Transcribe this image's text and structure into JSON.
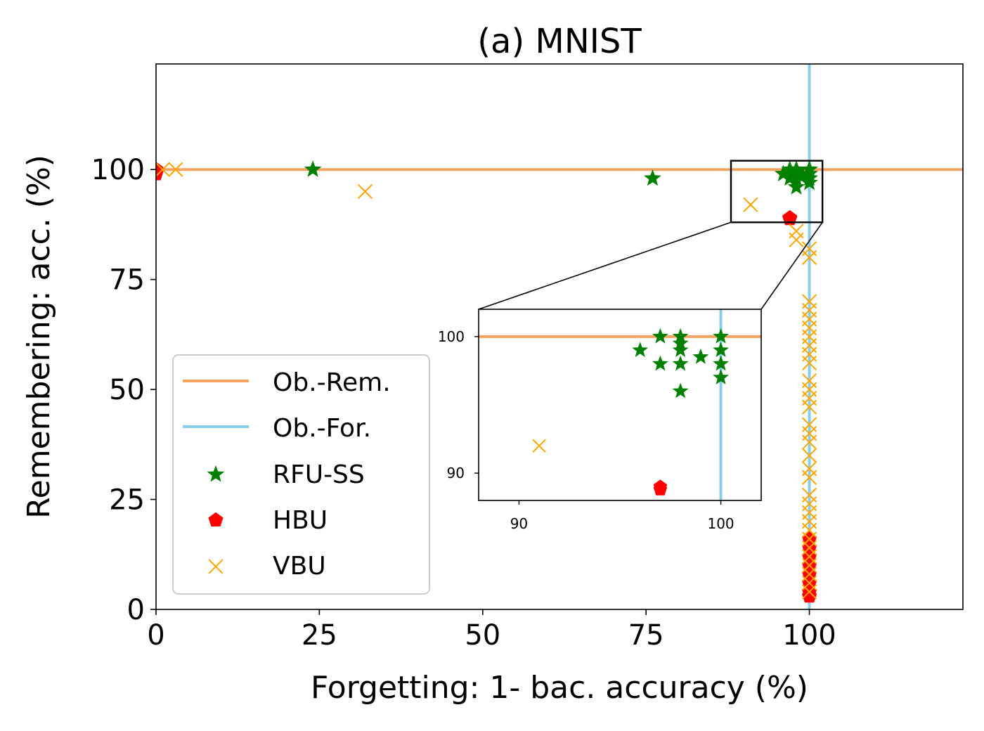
{
  "chart_data": {
    "type": "scatter",
    "title": "(a) MNIST",
    "xlabel": "Forgetting: 1- bac. accuracy (%)",
    "ylabel": "Remembering: acc. (%)",
    "xlim": [
      0,
      123.5
    ],
    "ylim": [
      0,
      124
    ],
    "xticks": [
      0,
      25,
      50,
      75,
      100
    ],
    "yticks": [
      0,
      25,
      50,
      75,
      100
    ],
    "grid": false,
    "legend_position": "lower-left",
    "reference_lines": [
      {
        "name": "Ob.-Rem.",
        "orientation": "horizontal",
        "value": 100,
        "color": "#f4a460"
      },
      {
        "name": "Ob.-For.",
        "orientation": "vertical",
        "value": 100,
        "color": "#87ceeb"
      }
    ],
    "series": [
      {
        "name": "RFU-SS",
        "marker": "star",
        "color": "#008000",
        "points": [
          [
            24,
            100
          ],
          [
            76,
            98
          ],
          [
            96,
            99
          ],
          [
            97,
            100
          ],
          [
            97,
            98
          ],
          [
            98,
            100
          ],
          [
            98,
            99.5
          ],
          [
            98,
            99
          ],
          [
            98,
            98
          ],
          [
            98,
            96
          ],
          [
            99,
            98.5
          ],
          [
            100,
            100
          ],
          [
            100,
            99
          ],
          [
            100,
            98
          ],
          [
            100,
            97
          ]
        ]
      },
      {
        "name": "HBU",
        "marker": "pentagon",
        "color": "#ff0000",
        "points": [
          [
            0,
            100
          ],
          [
            0,
            99
          ],
          [
            97,
            89
          ],
          [
            97,
            88.8
          ],
          [
            100,
            16
          ],
          [
            100,
            14
          ],
          [
            100,
            12
          ],
          [
            100,
            10
          ],
          [
            100,
            8
          ],
          [
            100,
            6
          ],
          [
            100,
            4
          ],
          [
            100,
            3
          ]
        ]
      },
      {
        "name": "VBU",
        "marker": "x",
        "color": "#ffa500",
        "points": [
          [
            1,
            100
          ],
          [
            3,
            100
          ],
          [
            32,
            95
          ],
          [
            91,
            92
          ],
          [
            98,
            86
          ],
          [
            98,
            84
          ],
          [
            100,
            82
          ],
          [
            100,
            80
          ],
          [
            100,
            70
          ],
          [
            100,
            68
          ],
          [
            100,
            66
          ],
          [
            100,
            64
          ],
          [
            100,
            62
          ],
          [
            100,
            60
          ],
          [
            100,
            58
          ],
          [
            100,
            56
          ],
          [
            100,
            52
          ],
          [
            100,
            50
          ],
          [
            100,
            48
          ],
          [
            100,
            46
          ],
          [
            100,
            42
          ],
          [
            100,
            40
          ],
          [
            100,
            38
          ],
          [
            100,
            35
          ],
          [
            100,
            32
          ],
          [
            100,
            30
          ],
          [
            100,
            26
          ],
          [
            100,
            24
          ],
          [
            100,
            22
          ],
          [
            100,
            20
          ],
          [
            100,
            18
          ],
          [
            100,
            16
          ],
          [
            100,
            14
          ],
          [
            100,
            12
          ],
          [
            100,
            10
          ],
          [
            100,
            8
          ],
          [
            100,
            6
          ],
          [
            100,
            4
          ]
        ]
      }
    ],
    "inset": {
      "xlim": [
        88,
        102
      ],
      "ylim": [
        88,
        102
      ],
      "xticks": [
        90,
        100
      ],
      "yticks": [
        90,
        100
      ]
    }
  }
}
